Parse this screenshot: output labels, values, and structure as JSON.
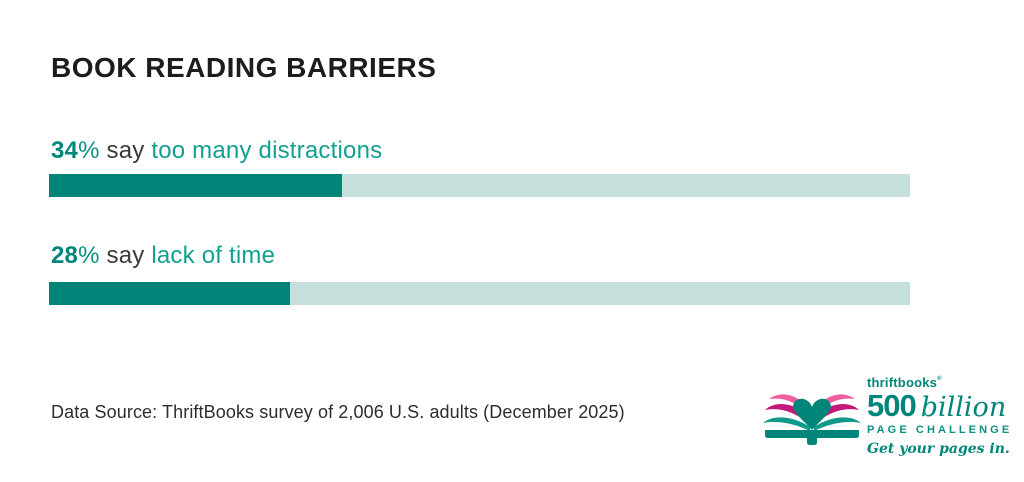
{
  "title": "BOOK READING BARRIERS",
  "chart_data": {
    "type": "bar",
    "orientation": "horizontal",
    "title": "BOOK READING BARRIERS",
    "categories": [
      "too many distractions",
      "lack of time"
    ],
    "values": [
      34,
      28
    ],
    "unit": "%",
    "xlim": [
      0,
      100
    ],
    "grid": false,
    "legend": false,
    "bar_color": "#008578",
    "track_color": "#c5e0dc"
  },
  "rows": [
    {
      "value": 34,
      "value_label": "34",
      "percent_sign": "%",
      "connector": " say ",
      "barrier": "too many distractions"
    },
    {
      "value": 28,
      "value_label": "28",
      "percent_sign": "%",
      "connector": " say ",
      "barrier": "lack of time"
    }
  ],
  "footer": {
    "source": "Data Source: ThriftBooks survey of 2,006 U.S. adults (December 2025)"
  },
  "logo": {
    "brand": "thriftbooks",
    "brand_mark": "®",
    "big_number": "500",
    "big_word": "billion",
    "subtitle": "PAGE CHALLENGE",
    "tagline": "Get your pages in.",
    "colors": {
      "teal": "#00857b",
      "leaf_teal": "#0f9a8c",
      "pink": "#ee5fa0",
      "magenta": "#c5187b"
    }
  }
}
